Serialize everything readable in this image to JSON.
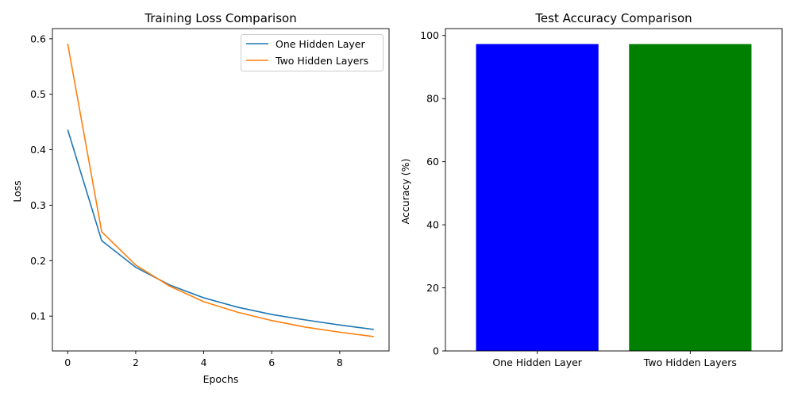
{
  "chart_data": [
    {
      "type": "line",
      "title": "Training Loss Comparison",
      "xlabel": "Epochs",
      "ylabel": "Loss",
      "xlim": [
        -0.45,
        9.45
      ],
      "ylim": [
        0.0372,
        0.6184
      ],
      "xticks": [
        0,
        2,
        4,
        6,
        8
      ],
      "yticks": [
        0.1,
        0.2,
        0.3,
        0.4,
        0.5,
        0.6
      ],
      "x": [
        0,
        1,
        2,
        3,
        4,
        5,
        6,
        7,
        8,
        9
      ],
      "series": [
        {
          "name": "One Hidden Layer",
          "color": "#1f77b4",
          "values": [
            0.436,
            0.236,
            0.188,
            0.156,
            0.133,
            0.116,
            0.103,
            0.093,
            0.084,
            0.076
          ]
        },
        {
          "name": "Two Hidden Layers",
          "color": "#ff7f0e",
          "values": [
            0.591,
            0.252,
            0.192,
            0.154,
            0.126,
            0.107,
            0.092,
            0.08,
            0.071,
            0.063
          ]
        }
      ],
      "legend": "top-right",
      "grid": false
    },
    {
      "type": "bar",
      "title": "Test Accuracy Comparison",
      "xlabel": "",
      "ylabel": "Accuracy (%)",
      "ylim": [
        0,
        102.2
      ],
      "yticks": [
        0,
        20,
        40,
        60,
        80,
        100
      ],
      "categories": [
        "One Hidden Layer",
        "Two Hidden Layers"
      ],
      "values": [
        97.3,
        97.3
      ],
      "colors": [
        "#0000ff",
        "#008000"
      ],
      "grid": false
    }
  ]
}
